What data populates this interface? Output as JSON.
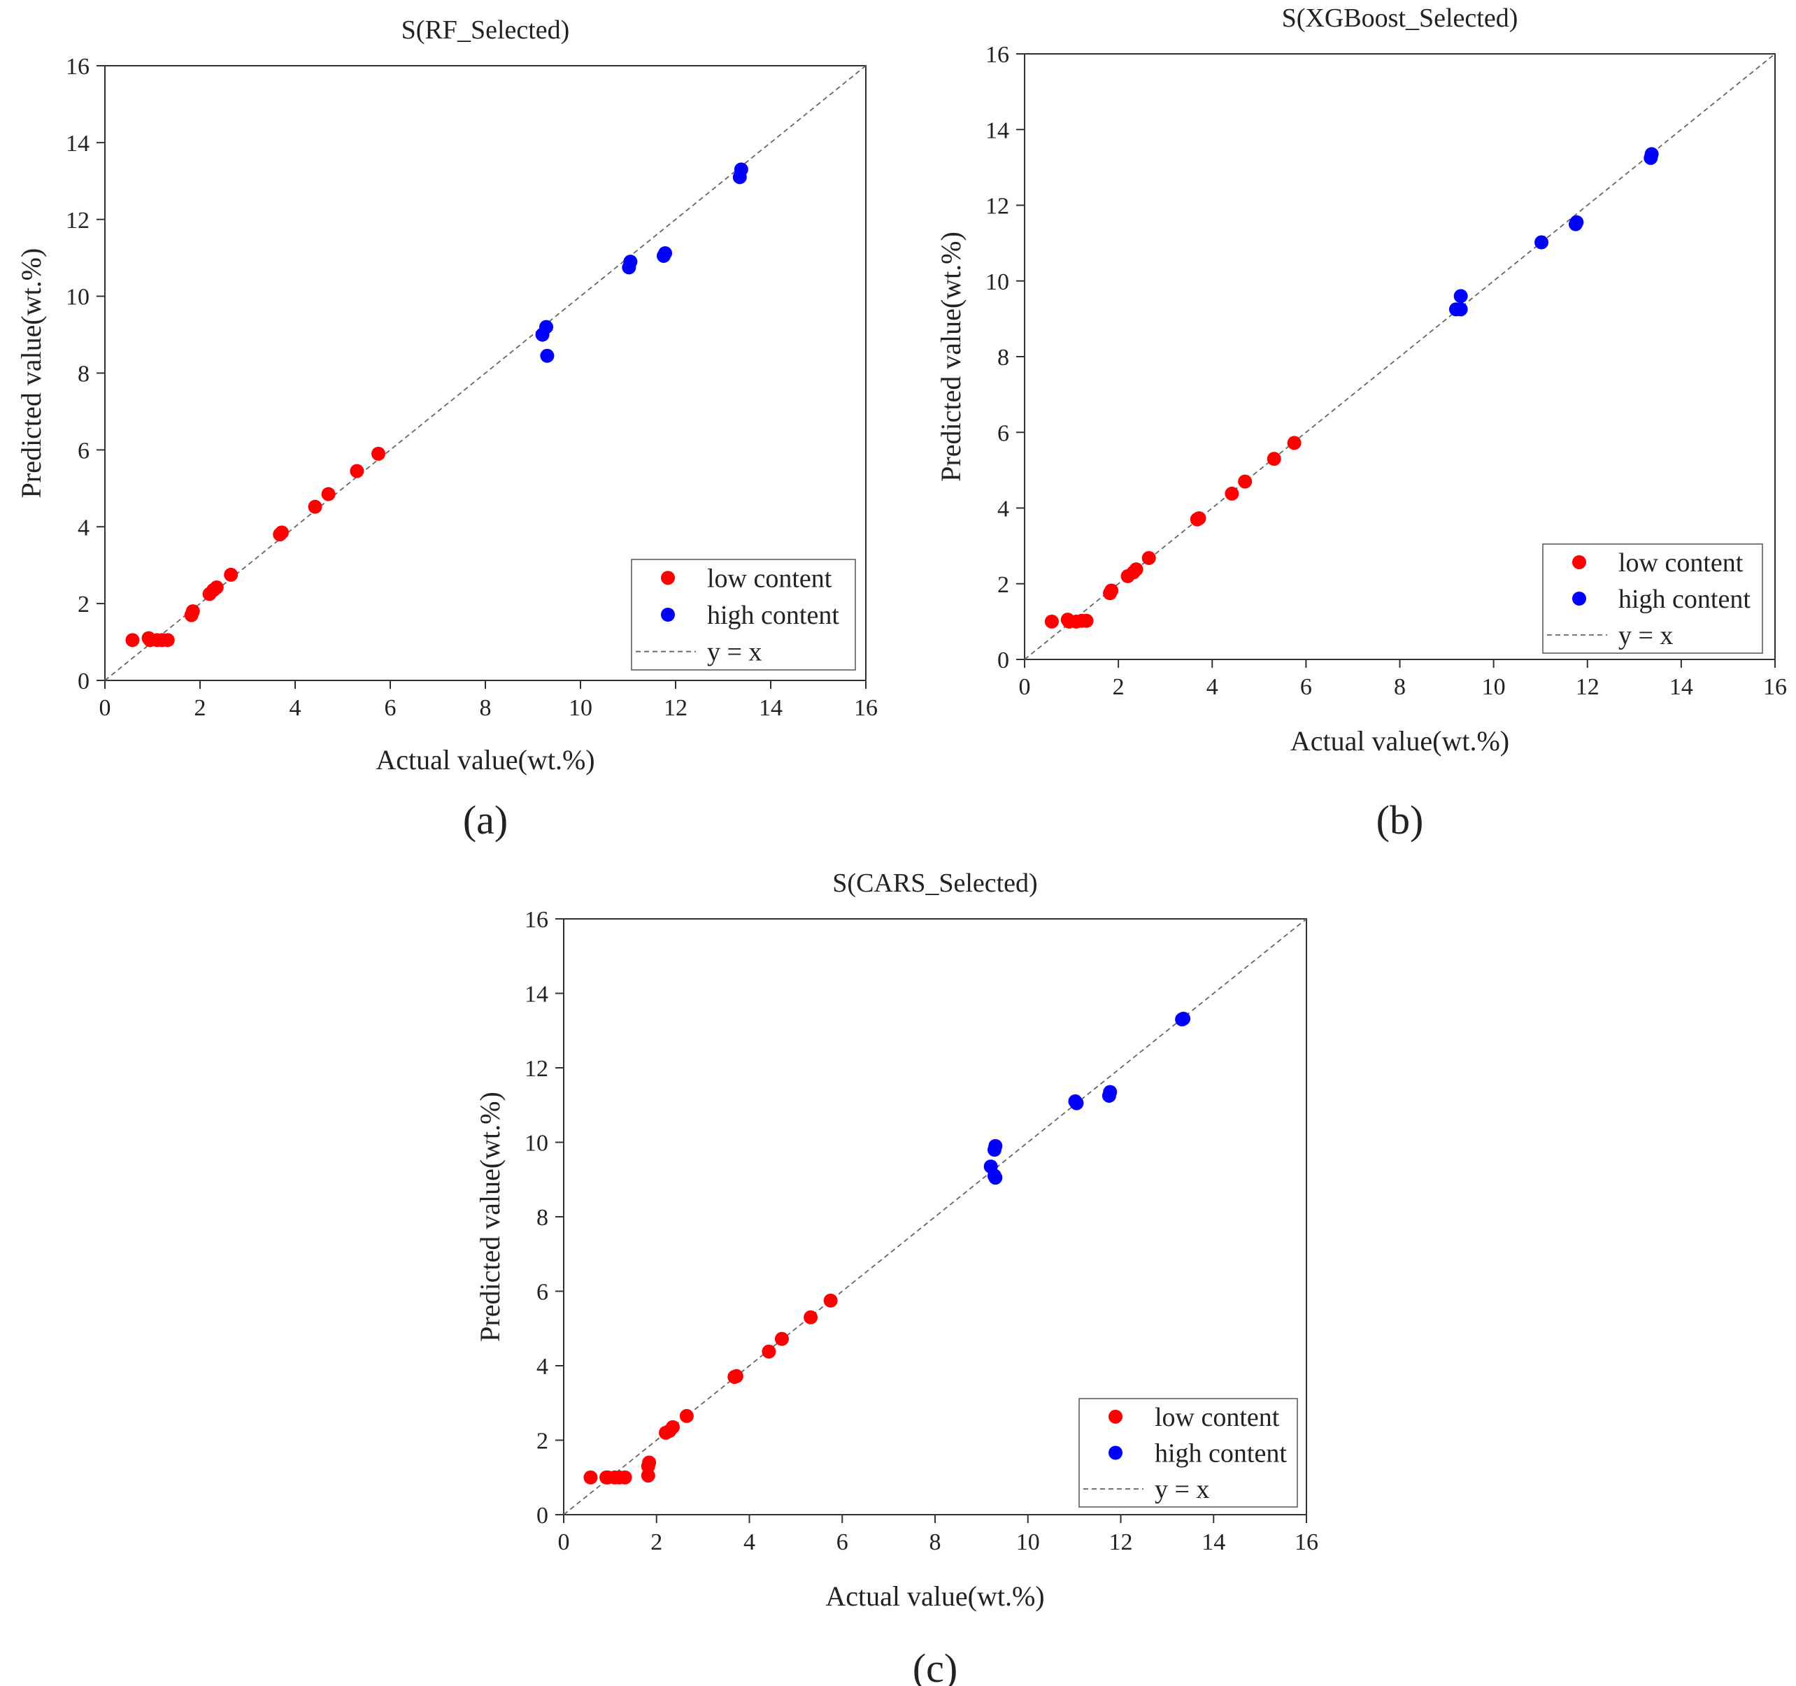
{
  "figure": {
    "panel_labels": [
      "(a)",
      "(b)",
      "(c)"
    ]
  },
  "colors": {
    "low": "#ff0000",
    "high": "#0000ff",
    "refline": "#666666",
    "axis": "#333333"
  },
  "chart_data": [
    {
      "type": "scatter",
      "title": "S(RF_Selected)",
      "xlabel": "Actual value(wt.%)",
      "ylabel": "Predicted value(wt.%)",
      "xlim": [
        0,
        16
      ],
      "ylim": [
        0,
        16
      ],
      "xticks": [
        "0",
        "2",
        "4",
        "6",
        "8",
        "10",
        "12",
        "14",
        "16"
      ],
      "yticks": [
        "0",
        "2",
        "4",
        "6",
        "8",
        "10",
        "12",
        "14",
        "16"
      ],
      "legend": {
        "position": "bottom-right",
        "entries": [
          "low content",
          "high content",
          "y = x"
        ]
      },
      "series": [
        {
          "name": "low content",
          "points": [
            [
              0.58,
              1.05
            ],
            [
              0.92,
              1.1
            ],
            [
              0.95,
              1.05
            ],
            [
              1.1,
              1.05
            ],
            [
              1.2,
              1.05
            ],
            [
              1.32,
              1.05
            ],
            [
              1.82,
              1.7
            ],
            [
              1.85,
              1.8
            ],
            [
              2.2,
              2.25
            ],
            [
              2.28,
              2.35
            ],
            [
              2.35,
              2.42
            ],
            [
              2.65,
              2.75
            ],
            [
              3.68,
              3.8
            ],
            [
              3.72,
              3.85
            ],
            [
              4.42,
              4.52
            ],
            [
              4.7,
              4.85
            ],
            [
              5.3,
              5.45
            ],
            [
              5.75,
              5.9
            ]
          ]
        },
        {
          "name": "high content",
          "points": [
            [
              9.2,
              9.0
            ],
            [
              9.28,
              9.2
            ],
            [
              9.3,
              8.45
            ],
            [
              11.02,
              10.75
            ],
            [
              11.05,
              10.9
            ],
            [
              11.75,
              11.05
            ],
            [
              11.78,
              11.12
            ],
            [
              13.35,
              13.1
            ],
            [
              13.38,
              13.3
            ]
          ]
        }
      ]
    },
    {
      "type": "scatter",
      "title": "S(XGBoost_Selected)",
      "xlabel": "Actual value(wt.%)",
      "ylabel": "Predicted value(wt.%)",
      "xlim": [
        0,
        16
      ],
      "ylim": [
        0,
        16
      ],
      "xticks": [
        "0",
        "2",
        "4",
        "6",
        "8",
        "10",
        "12",
        "14",
        "16"
      ],
      "yticks": [
        "0",
        "2",
        "4",
        "6",
        "8",
        "10",
        "12",
        "14",
        "16"
      ],
      "legend": {
        "position": "bottom-right",
        "entries": [
          "low content",
          "high content",
          "y = x"
        ]
      },
      "series": [
        {
          "name": "low content",
          "points": [
            [
              0.58,
              1.0
            ],
            [
              0.92,
              1.05
            ],
            [
              0.95,
              1.0
            ],
            [
              1.1,
              1.0
            ],
            [
              1.22,
              1.02
            ],
            [
              1.32,
              1.02
            ],
            [
              1.82,
              1.75
            ],
            [
              1.85,
              1.82
            ],
            [
              2.2,
              2.2
            ],
            [
              2.32,
              2.3
            ],
            [
              2.38,
              2.38
            ],
            [
              2.65,
              2.68
            ],
            [
              3.68,
              3.7
            ],
            [
              3.72,
              3.73
            ],
            [
              4.42,
              4.38
            ],
            [
              4.7,
              4.7
            ],
            [
              5.32,
              5.3
            ],
            [
              5.75,
              5.72
            ]
          ]
        },
        {
          "name": "high content",
          "points": [
            [
              9.2,
              9.25
            ],
            [
              9.3,
              9.25
            ],
            [
              9.3,
              9.6
            ],
            [
              11.02,
              11.02
            ],
            [
              11.75,
              11.5
            ],
            [
              11.77,
              11.55
            ],
            [
              13.35,
              13.25
            ],
            [
              13.37,
              13.35
            ]
          ]
        }
      ]
    },
    {
      "type": "scatter",
      "title": "S(CARS_Selected)",
      "xlabel": "Actual value(wt.%)",
      "ylabel": "Predicted value(wt.%)",
      "xlim": [
        0,
        16
      ],
      "ylim": [
        0,
        16
      ],
      "xticks": [
        "0",
        "2",
        "4",
        "6",
        "8",
        "10",
        "12",
        "14",
        "16"
      ],
      "yticks": [
        "0",
        "2",
        "4",
        "6",
        "8",
        "10",
        "12",
        "14",
        "16"
      ],
      "legend": {
        "position": "bottom-right",
        "entries": [
          "low content",
          "high content",
          "y = x"
        ]
      },
      "series": [
        {
          "name": "low content",
          "points": [
            [
              0.58,
              1.0
            ],
            [
              0.92,
              1.0
            ],
            [
              0.95,
              1.0
            ],
            [
              1.1,
              1.0
            ],
            [
              1.2,
              1.0
            ],
            [
              1.32,
              1.0
            ],
            [
              1.82,
              1.05
            ],
            [
              1.82,
              1.3
            ],
            [
              1.84,
              1.4
            ],
            [
              2.2,
              2.2
            ],
            [
              2.28,
              2.25
            ],
            [
              2.35,
              2.35
            ],
            [
              2.65,
              2.65
            ],
            [
              3.68,
              3.7
            ],
            [
              3.72,
              3.72
            ],
            [
              4.42,
              4.38
            ],
            [
              4.7,
              4.72
            ],
            [
              5.32,
              5.3
            ],
            [
              5.75,
              5.75
            ]
          ]
        },
        {
          "name": "high content",
          "points": [
            [
              9.2,
              9.35
            ],
            [
              9.28,
              9.1
            ],
            [
              9.3,
              9.05
            ],
            [
              9.28,
              9.8
            ],
            [
              9.3,
              9.9
            ],
            [
              11.02,
              11.1
            ],
            [
              11.05,
              11.05
            ],
            [
              11.75,
              11.25
            ],
            [
              11.77,
              11.35
            ],
            [
              13.32,
              13.3
            ],
            [
              13.35,
              13.32
            ]
          ]
        }
      ]
    }
  ]
}
